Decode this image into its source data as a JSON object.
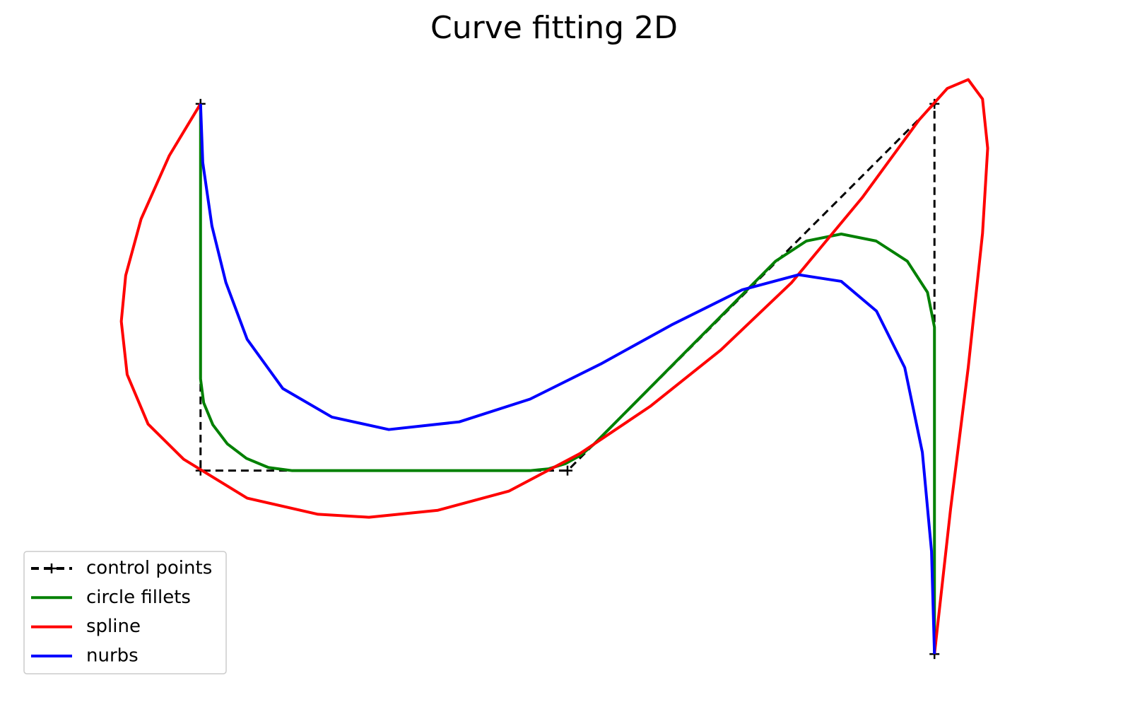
{
  "chart_data": {
    "type": "line",
    "title": "Curve fitting 2D",
    "xlim": [
      -0.3,
      2.3
    ],
    "ylim": [
      -0.6,
      1.15
    ],
    "legend": "lower left",
    "series": [
      {
        "name": "control points",
        "color": "#000000",
        "linestyle": "dashed",
        "marker": "+",
        "x": [
          0,
          0,
          1,
          2,
          2
        ],
        "y": [
          1,
          0,
          0,
          1,
          -0.5
        ]
      },
      {
        "name": "circle fillets",
        "color": "#008000",
        "linestyle": "solid",
        "x": [
          0,
          0,
          0.0085,
          0.0335,
          0.073,
          0.125,
          0.185,
          0.25,
          0.898,
          0.949,
          0.994,
          1.036,
          1.072,
          1.567,
          1.651,
          1.746,
          1.841,
          1.926,
          1.981,
          2,
          2
        ],
        "y": [
          1,
          0.25,
          0.185,
          0.125,
          0.073,
          0.0335,
          0.0085,
          0,
          0,
          0.005,
          0.019,
          0.042,
          0.072,
          0.571,
          0.626,
          0.645,
          0.626,
          0.571,
          0.486,
          0.391,
          -0.5
        ]
      },
      {
        "name": "spline",
        "color": "#ff0000",
        "linestyle": "solid",
        "x": [
          0,
          -0.085,
          -0.162,
          -0.204,
          -0.216,
          -0.2,
          -0.143,
          -0.046,
          0.127,
          0.32,
          0.459,
          0.647,
          0.84,
          1.033,
          1.225,
          1.418,
          1.611,
          1.803,
          1.958,
          2.035,
          2.092,
          2.131,
          2.145,
          2.131,
          2.092,
          2.044,
          2
        ],
        "y": [
          1,
          0.859,
          0.686,
          0.532,
          0.407,
          0.262,
          0.127,
          0.031,
          -0.075,
          -0.119,
          -0.127,
          -0.108,
          -0.056,
          0.046,
          0.175,
          0.329,
          0.513,
          0.744,
          0.956,
          1.042,
          1.066,
          1.013,
          0.879,
          0.647,
          0.281,
          -0.104,
          -0.5
        ]
      },
      {
        "name": "nurbs",
        "color": "#0000ff",
        "linestyle": "solid",
        "x": [
          0,
          0.006,
          0.031,
          0.069,
          0.127,
          0.224,
          0.358,
          0.513,
          0.705,
          0.898,
          1.091,
          1.283,
          1.476,
          1.63,
          1.746,
          1.842,
          1.919,
          1.967,
          1.992,
          2
        ],
        "y": [
          1,
          0.84,
          0.667,
          0.513,
          0.358,
          0.224,
          0.146,
          0.112,
          0.133,
          0.195,
          0.291,
          0.397,
          0.493,
          0.534,
          0.516,
          0.435,
          0.281,
          0.05,
          -0.22,
          -0.5
        ]
      }
    ]
  }
}
